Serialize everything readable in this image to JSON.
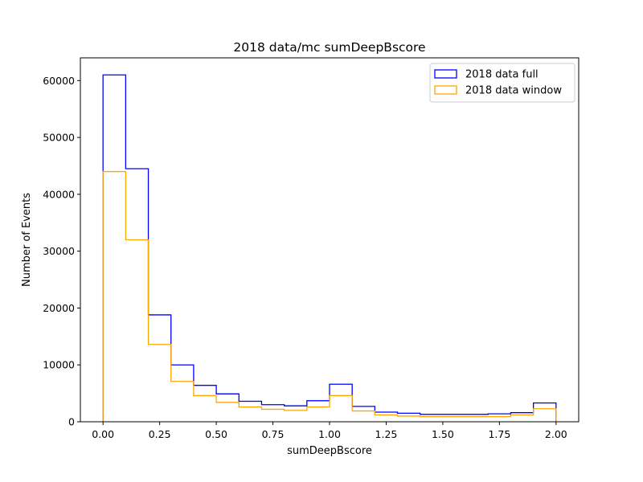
{
  "chart_data": {
    "type": "histogram-step",
    "title": "2018 data/mc sumDeepBscore",
    "xlabel": "sumDeepBscore",
    "ylabel": "Number of Events",
    "xlim": [
      -0.1,
      2.1
    ],
    "ylim": [
      0,
      64000
    ],
    "bin_edges": [
      0.0,
      0.1,
      0.2,
      0.3,
      0.4,
      0.5,
      0.6,
      0.7,
      0.8,
      0.9,
      1.0,
      1.1,
      1.2,
      1.3,
      1.4,
      1.5,
      1.6,
      1.7,
      1.8,
      1.9,
      2.0
    ],
    "x_ticks": [
      {
        "value": 0.0,
        "label": "0.00"
      },
      {
        "value": 0.25,
        "label": "0.25"
      },
      {
        "value": 0.5,
        "label": "0.50"
      },
      {
        "value": 0.75,
        "label": "0.75"
      },
      {
        "value": 1.0,
        "label": "1.00"
      },
      {
        "value": 1.25,
        "label": "1.25"
      },
      {
        "value": 1.5,
        "label": "1.50"
      },
      {
        "value": 1.75,
        "label": "1.75"
      },
      {
        "value": 2.0,
        "label": "2.00"
      }
    ],
    "y_ticks": [
      {
        "value": 0,
        "label": "0"
      },
      {
        "value": 10000,
        "label": "10000"
      },
      {
        "value": 20000,
        "label": "20000"
      },
      {
        "value": 30000,
        "label": "30000"
      },
      {
        "value": 40000,
        "label": "40000"
      },
      {
        "value": 50000,
        "label": "50000"
      },
      {
        "value": 60000,
        "label": "60000"
      }
    ],
    "series": [
      {
        "name": "2018 data full",
        "color": "#0000ff",
        "values": [
          61000,
          44500,
          18800,
          10000,
          6400,
          4900,
          3600,
          3000,
          2800,
          3700,
          6600,
          2700,
          1700,
          1500,
          1300,
          1300,
          1300,
          1400,
          1600,
          3300
        ]
      },
      {
        "name": "2018 data window",
        "color": "#ffa500",
        "values": [
          44000,
          32000,
          13600,
          7100,
          4600,
          3400,
          2600,
          2200,
          2000,
          2600,
          4600,
          1900,
          1200,
          1000,
          900,
          900,
          900,
          900,
          1200,
          2300
        ]
      }
    ],
    "grid": false,
    "legend_position": "upper-right"
  }
}
